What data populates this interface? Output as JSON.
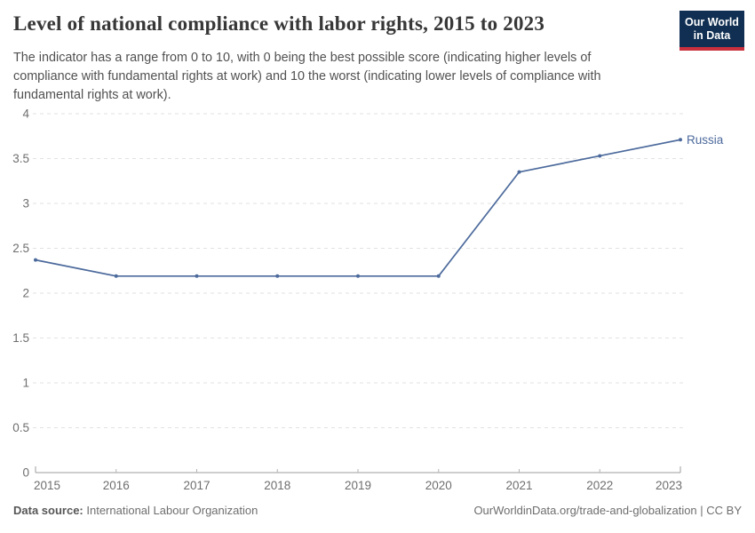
{
  "header": {
    "title": "Level of national compliance with labor rights, 2015 to 2023",
    "subtitle_lines": [
      "The indicator has a range from 0 to 10, with 0 being the best possible score (indicating higher levels of",
      "compliance with fundamental rights at work) and 10 the worst (indicating lower levels of compliance with",
      "fundamental rights at work)."
    ],
    "logo": {
      "line1": "Our World",
      "line2": "in Data"
    }
  },
  "chart_data": {
    "type": "line",
    "title": "Level of national compliance with labor rights, 2015 to 2023",
    "x": [
      2015,
      2016,
      2017,
      2018,
      2019,
      2020,
      2021,
      2022,
      2023
    ],
    "series": [
      {
        "name": "Russia",
        "color": "#4c6a9c",
        "values": [
          2.37,
          2.19,
          2.19,
          2.19,
          2.19,
          2.19,
          3.35,
          3.53,
          3.71
        ]
      }
    ],
    "ylim": [
      0,
      4
    ],
    "yticks": [
      0,
      0.5,
      1,
      1.5,
      2,
      2.5,
      3,
      3.5,
      4
    ],
    "xlabel": "",
    "ylabel": "",
    "grid": "horizontal-dashed",
    "legend_position": "line-end-label"
  },
  "colors": {
    "line": "#4c6a9c",
    "grid": "#e2e2e2",
    "axis": "#9c9c9c",
    "minor_tick": "#b3b3b3",
    "tick_label": "#6e6e6e",
    "logo_bg": "#102f52",
    "logo_red": "#c9303e"
  },
  "footer": {
    "datasource_label": "Data source:",
    "datasource_value": "International Labour Organization",
    "right_text": "OurWorldinData.org/trade-and-globalization | CC BY"
  }
}
